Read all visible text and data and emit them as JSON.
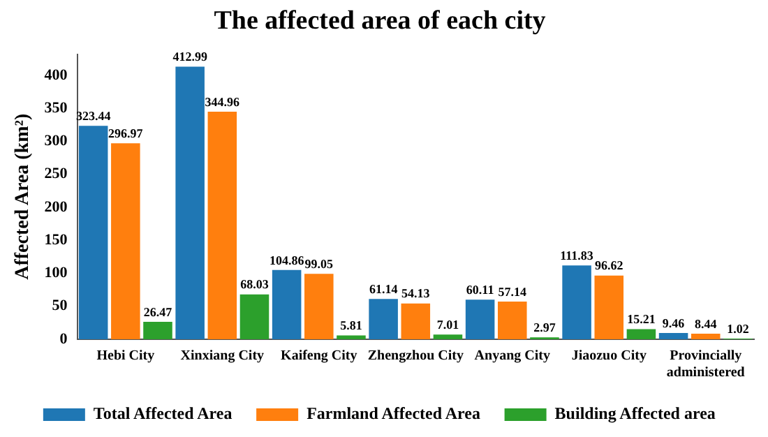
{
  "chart_data": {
    "type": "bar",
    "title": "The affected area of each city",
    "ylabel": "Affected Area (km²)",
    "categories": [
      "Hebi City",
      "Xinxiang City",
      "Kaifeng City",
      "Zhengzhou City",
      "Anyang City",
      "Jiaozuo City",
      "Provincially administered"
    ],
    "series": [
      {
        "name": "Total Affected Area",
        "color": "#1f77b4",
        "values": [
          323.44,
          412.99,
          104.86,
          61.14,
          60.11,
          111.83,
          9.46
        ]
      },
      {
        "name": "Farmland Affected Area",
        "color": "#ff7f0e",
        "values": [
          296.97,
          344.96,
          99.05,
          54.13,
          57.14,
          96.62,
          8.44
        ]
      },
      {
        "name": "Building Affected area",
        "color": "#2ca02c",
        "values": [
          26.47,
          68.03,
          5.81,
          7.01,
          2.97,
          15.21,
          1.02
        ]
      }
    ],
    "ylim": [
      0,
      432
    ],
    "yticks": [
      0,
      50,
      100,
      150,
      200,
      250,
      300,
      350,
      400
    ],
    "grid": false,
    "legend": "bottom",
    "data_labels": true
  }
}
